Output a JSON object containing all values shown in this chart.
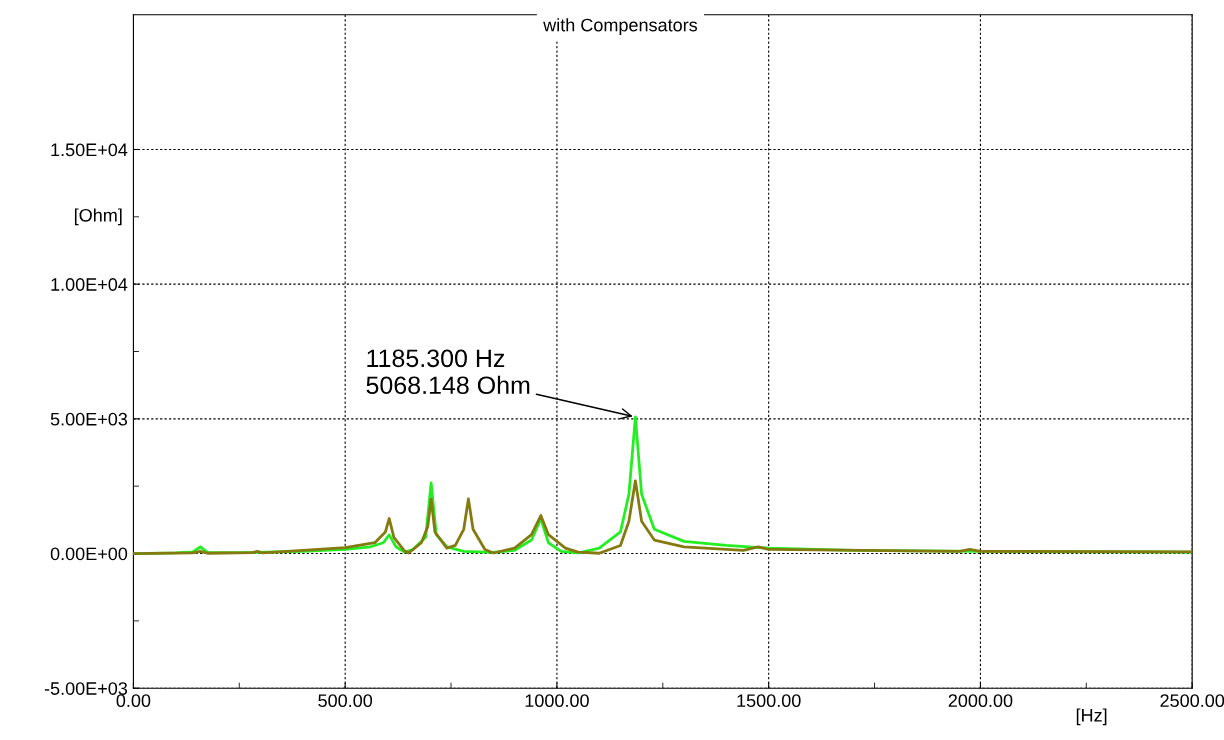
{
  "chart_data": {
    "type": "line",
    "title": "with Compensators",
    "xlabel": "[Hz]",
    "ylabel": "[Ohm]",
    "series": [
      {
        "color": "#22ee22",
        "x": [
          0,
          100,
          140,
          158,
          175,
          250,
          400,
          500,
          560,
          590,
          604,
          620,
          640,
          660,
          690,
          703,
          715,
          740,
          780,
          850,
          900,
          940,
          962,
          980,
          1010,
          1050,
          1100,
          1150,
          1170,
          1185.3,
          1200,
          1230,
          1300,
          1400,
          1500,
          1700,
          2000,
          2500
        ],
        "values": [
          0,
          20,
          60,
          250,
          40,
          30,
          80,
          150,
          250,
          400,
          690,
          250,
          50,
          150,
          600,
          2620,
          700,
          250,
          80,
          40,
          120,
          500,
          1290,
          400,
          80,
          20,
          200,
          800,
          2200,
          5068.148,
          2200,
          900,
          450,
          300,
          200,
          120,
          80,
          50
        ]
      },
      {
        "color": "#857a10",
        "x": [
          0,
          140,
          158,
          175,
          280,
          293,
          305,
          400,
          500,
          570,
          595,
          604,
          615,
          640,
          650,
          680,
          695,
          703,
          712,
          740,
          760,
          780,
          791,
          802,
          830,
          850,
          900,
          940,
          962,
          980,
          1020,
          1050,
          1100,
          1150,
          1170,
          1185.3,
          1200,
          1230,
          1300,
          1440,
          1475,
          1500,
          1950,
          1975,
          2000,
          2500
        ],
        "values": [
          0,
          20,
          80,
          10,
          30,
          80,
          20,
          120,
          220,
          400,
          800,
          1300,
          600,
          100,
          20,
          400,
          1000,
          2020,
          800,
          200,
          300,
          900,
          2030,
          900,
          150,
          20,
          200,
          700,
          1410,
          700,
          200,
          50,
          10,
          300,
          1200,
          2700,
          1200,
          500,
          250,
          120,
          250,
          150,
          80,
          150,
          80,
          60
        ]
      }
    ],
    "annotations": [
      {
        "text": "1185.300 Hz\n5068.148 Ohm",
        "x": 1185.3,
        "y": 5068.148
      }
    ],
    "xlim": [
      0,
      2500
    ],
    "xticks": [
      {
        "value": 0,
        "label": "0.00"
      },
      {
        "value": 500,
        "label": "500.00"
      },
      {
        "value": 1000,
        "label": "1000.00"
      },
      {
        "value": 1500,
        "label": "1500.00"
      },
      {
        "value": 2000,
        "label": "2000.00"
      },
      {
        "value": 2500,
        "label": "2500.00"
      }
    ],
    "ylim": [
      -5000,
      20000
    ],
    "yticks": [
      {
        "value": -5000,
        "label": "-5.00E+03"
      },
      {
        "value": 0,
        "label": "0.00E+00"
      },
      {
        "value": 5000,
        "label": "5.00E+03"
      },
      {
        "value": 10000,
        "label": "1.00E+04"
      },
      {
        "value": 15000,
        "label": "1.50E+04"
      }
    ],
    "grid": true,
    "marker": "none",
    "line_style": "solid"
  }
}
